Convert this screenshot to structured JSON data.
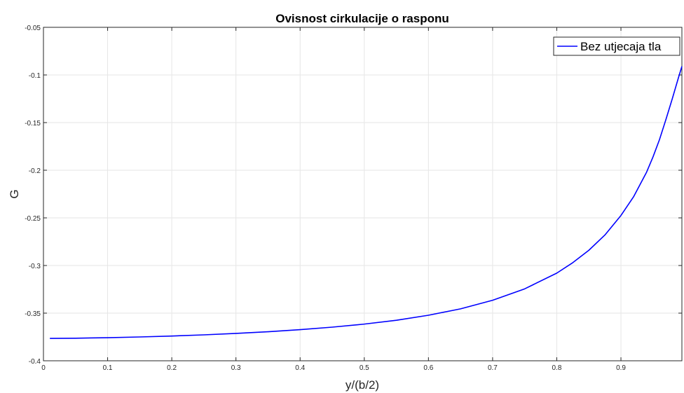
{
  "chart_data": {
    "type": "line",
    "title": "Ovisnost cirkulacije o rasponu",
    "xlabel": "y/(b/2)",
    "ylabel": "G",
    "xlim": [
      0,
      0.995
    ],
    "ylim": [
      -0.4,
      -0.05
    ],
    "y_reversed": true,
    "grid": true,
    "legend_position": "top-right",
    "x_ticks": [
      0,
      0.1,
      0.2,
      0.3,
      0.4,
      0.5,
      0.6,
      0.7,
      0.8,
      0.9
    ],
    "x_tick_labels": [
      "0",
      "0.1",
      "0.2",
      "0.3",
      "0.4",
      "0.5",
      "0.6",
      "0.7",
      "0.8",
      "0.9"
    ],
    "y_ticks": [
      -0.05,
      -0.1,
      -0.15,
      -0.2,
      -0.25,
      -0.3,
      -0.35,
      -0.4
    ],
    "y_tick_labels": [
      "-0.05",
      "-0.1",
      "-0.15",
      "-0.2",
      "-0.25",
      "-0.3",
      "-0.35",
      "-0.4"
    ],
    "series": [
      {
        "name": "Bez utjecaja tla",
        "color": "#0000ff",
        "x": [
          0.01,
          0.05,
          0.1,
          0.15,
          0.2,
          0.25,
          0.3,
          0.35,
          0.4,
          0.45,
          0.5,
          0.55,
          0.6,
          0.65,
          0.7,
          0.75,
          0.8,
          0.825,
          0.85,
          0.875,
          0.9,
          0.92,
          0.94,
          0.95,
          0.96,
          0.97,
          0.98,
          0.99,
          0.995
        ],
        "y": [
          -0.3765,
          -0.3763,
          -0.3758,
          -0.375,
          -0.374,
          -0.3728,
          -0.3713,
          -0.3695,
          -0.3673,
          -0.3647,
          -0.3615,
          -0.3575,
          -0.3522,
          -0.3455,
          -0.3365,
          -0.3245,
          -0.308,
          -0.297,
          -0.284,
          -0.268,
          -0.2475,
          -0.2275,
          -0.202,
          -0.186,
          -0.168,
          -0.147,
          -0.125,
          -0.102,
          -0.091
        ]
      }
    ]
  }
}
